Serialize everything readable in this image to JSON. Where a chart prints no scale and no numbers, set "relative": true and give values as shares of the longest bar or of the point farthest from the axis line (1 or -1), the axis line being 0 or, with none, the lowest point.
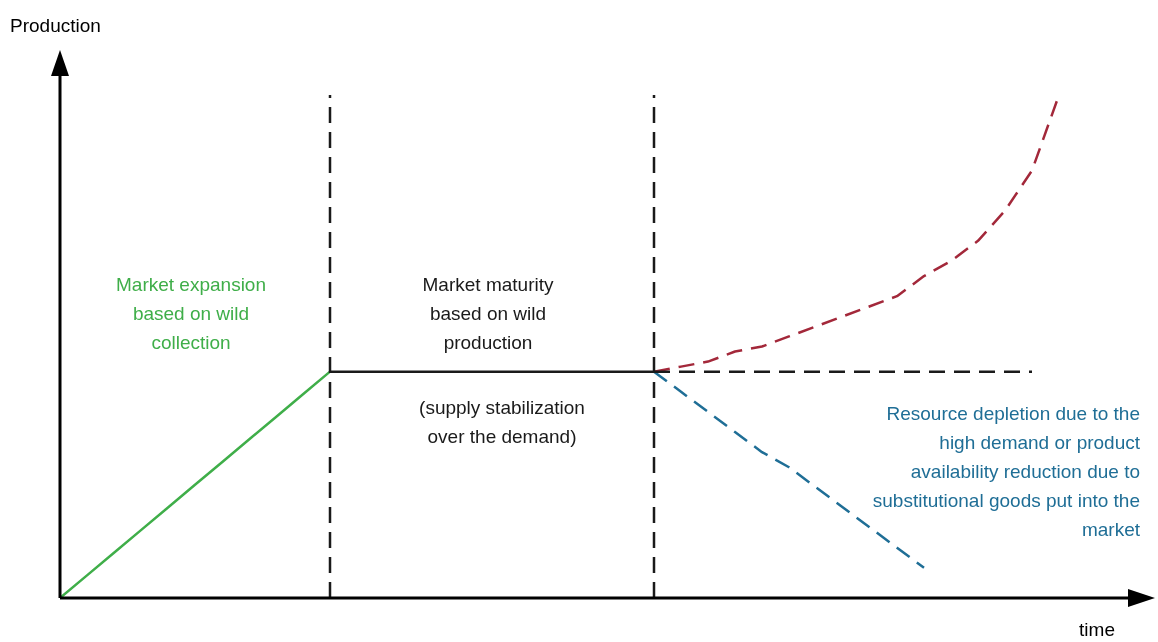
{
  "chart_data": {
    "type": "line",
    "relative": true,
    "xlabel": "time",
    "ylabel": "Production",
    "tick_labels": false,
    "legend": false,
    "marker": "none",
    "categories": [
      null,
      null,
      null,
      null,
      null,
      null,
      null,
      null,
      null,
      null,
      null,
      null,
      null,
      null,
      null,
      null,
      null,
      null,
      null,
      null,
      null,
      null,
      null,
      null,
      null,
      null,
      null,
      null,
      null,
      null,
      null,
      null,
      null,
      null,
      null,
      null,
      null,
      null,
      null,
      null,
      null
    ],
    "series": [
      {
        "name": "Market expansion based on wild collection",
        "color": "#3fae49",
        "line_style": "solid",
        "values": [
          0,
          0.045,
          0.09,
          0.135,
          0.18,
          0.225,
          0.27,
          0.315,
          0.36,
          0.405,
          0.45,
          null,
          null,
          null,
          null,
          null,
          null,
          null,
          null,
          null,
          null,
          null,
          null,
          null,
          null,
          null,
          null,
          null,
          null,
          null,
          null,
          null,
          null,
          null,
          null,
          null,
          null,
          null,
          null,
          null,
          null
        ]
      },
      {
        "name": "Market maturity based on wild production",
        "color": "#1a1a1a",
        "line_style": "solid",
        "values": [
          null,
          null,
          null,
          null,
          null,
          null,
          null,
          null,
          null,
          null,
          0.45,
          0.45,
          0.45,
          0.45,
          0.45,
          0.45,
          0.45,
          0.45,
          0.45,
          0.45,
          0.45,
          0.45,
          0.45,
          null,
          null,
          null,
          null,
          null,
          null,
          null,
          null,
          null,
          null,
          null,
          null,
          null,
          null,
          null,
          null,
          null,
          null
        ]
      },
      {
        "color": "#1a1a1a",
        "line_style": "dashed",
        "values": [
          null,
          null,
          null,
          null,
          null,
          null,
          null,
          null,
          null,
          null,
          null,
          null,
          null,
          null,
          null,
          null,
          null,
          null,
          null,
          null,
          null,
          null,
          0.45,
          0.45,
          0.45,
          0.45,
          0.45,
          0.45,
          0.45,
          0.45,
          0.45,
          0.45,
          0.45,
          0.45,
          0.45,
          0.45,
          0.45,
          null,
          null,
          null,
          null
        ]
      },
      {
        "color": "#a3283a",
        "line_style": "dashed",
        "values": [
          null,
          null,
          null,
          null,
          null,
          null,
          null,
          null,
          null,
          null,
          null,
          null,
          null,
          null,
          null,
          null,
          null,
          null,
          null,
          null,
          null,
          null,
          0.45,
          0.46,
          0.47,
          0.49,
          0.5,
          0.52,
          0.54,
          0.56,
          0.58,
          0.6,
          0.64,
          0.67,
          0.71,
          0.77,
          0.85,
          1,
          null,
          null,
          null
        ]
      },
      {
        "name": "Resource depletion due to the high demand or product availability reduction due to substitutional goods put into the market",
        "color": "#1f6e96",
        "line_style": "dashed",
        "values": [
          null,
          null,
          null,
          null,
          null,
          null,
          null,
          null,
          null,
          null,
          null,
          null,
          null,
          null,
          null,
          null,
          null,
          null,
          null,
          null,
          null,
          null,
          0.45,
          0.41,
          0.37,
          0.33,
          0.29,
          0.26,
          0.22,
          0.18,
          0.14,
          0.1,
          0.06,
          null,
          null,
          null,
          null,
          null,
          null,
          null,
          null
        ]
      }
    ],
    "annotations": [
      "(supply stabilization over the demand)"
    ]
  }
}
